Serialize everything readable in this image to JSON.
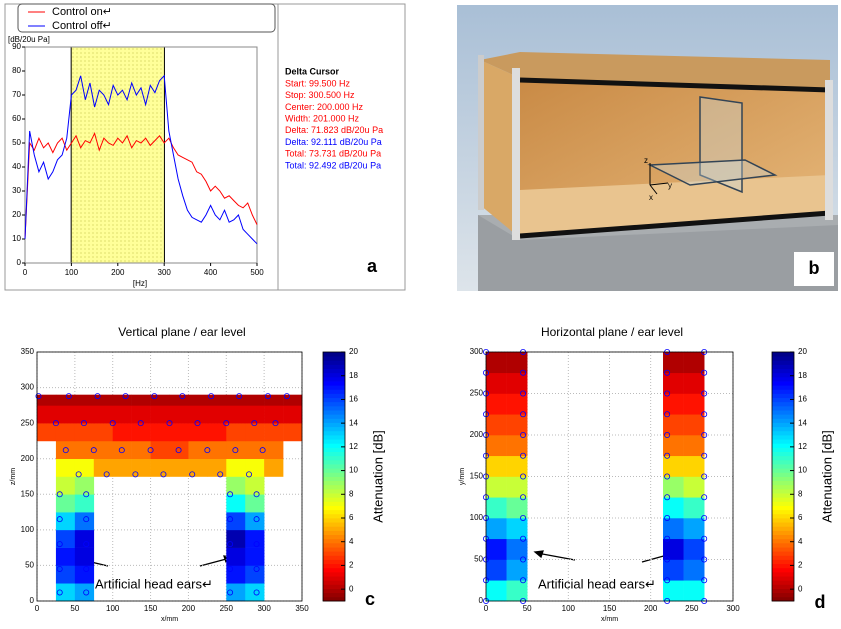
{
  "chart_data": [
    {
      "type": "line",
      "panel_label": "a",
      "ylabel": "[dB/20u Pa]",
      "xlabel": "[Hz]",
      "x": [
        0,
        10,
        20,
        30,
        40,
        50,
        60,
        70,
        80,
        90,
        100,
        110,
        120,
        130,
        140,
        150,
        160,
        170,
        180,
        190,
        200,
        210,
        220,
        230,
        240,
        250,
        260,
        270,
        280,
        290,
        300,
        310,
        320,
        330,
        340,
        350,
        360,
        370,
        380,
        390,
        400,
        410,
        420,
        430,
        440,
        450,
        460,
        470,
        480,
        490,
        500
      ],
      "series": [
        {
          "name": "Control on↵",
          "color": "#ff0000",
          "values": [
            10,
            50,
            47,
            52,
            48,
            50,
            46,
            50,
            52,
            47,
            50,
            53,
            48,
            51,
            50,
            54,
            47,
            52,
            50,
            49,
            52,
            50,
            53,
            48,
            51,
            50,
            52,
            49,
            51,
            53,
            50,
            52,
            48,
            45,
            44,
            43,
            42,
            38,
            37,
            34,
            30,
            32,
            30,
            27,
            28,
            26,
            24,
            23,
            25,
            20,
            16
          ]
        },
        {
          "name": "Control off↵",
          "color": "#0000ff",
          "values": [
            10,
            55,
            45,
            38,
            42,
            35,
            38,
            43,
            45,
            52,
            70,
            72,
            78,
            68,
            75,
            65,
            72,
            70,
            66,
            74,
            70,
            72,
            68,
            75,
            70,
            73,
            66,
            74,
            71,
            76,
            78,
            55,
            45,
            35,
            28,
            22,
            19,
            18,
            17,
            20,
            24,
            20,
            18,
            22,
            17,
            18,
            20,
            14,
            12,
            10,
            8
          ]
        }
      ],
      "xlim": [
        0,
        500
      ],
      "ylim": [
        0,
        90
      ],
      "xticks": [
        0,
        100,
        200,
        300,
        400,
        500
      ],
      "yticks": [
        0,
        10,
        20,
        30,
        40,
        50,
        60,
        70,
        80,
        90
      ],
      "shade": [
        99.5,
        300.5
      ],
      "shade_color": "#ffff99",
      "cursor_box": {
        "title": "Delta Cursor",
        "lines": [
          {
            "text": "Start: 99.500 Hz",
            "color": "#ff0000"
          },
          {
            "text": "Stop: 300.500 Hz",
            "color": "#ff0000"
          },
          {
            "text": "Center: 200.000 Hz",
            "color": "#ff0000"
          },
          {
            "text": "Width: 201.000 Hz",
            "color": "#ff0000"
          },
          {
            "text": "Delta: 71.823 dB/20u Pa",
            "color": "#ff0000"
          },
          {
            "text": "Delta: 92.111 dB/20u Pa",
            "color": "#0000ff"
          },
          {
            "text": "Total: 73.731 dB/20u Pa",
            "color": "#ff0000"
          },
          {
            "text": "Total: 92.492 dB/20u Pa",
            "color": "#0000ff"
          }
        ]
      }
    },
    {
      "type": "heatmap",
      "title": "Vertical plane / ear level",
      "panel_label": "c",
      "xlabel": "x/mm",
      "ylabel": "z/mm",
      "xlim": [
        0,
        350
      ],
      "ylim": [
        0,
        350
      ],
      "xticks": [
        0,
        50,
        100,
        150,
        200,
        250,
        300,
        350
      ],
      "yticks": [
        0,
        50,
        100,
        150,
        200,
        250,
        300,
        350
      ],
      "grid": true,
      "x_edges": [
        0,
        25,
        50,
        75,
        100,
        125,
        150,
        175,
        200,
        225,
        250,
        275,
        300,
        325,
        350
      ],
      "y_edges": [
        0,
        25,
        50,
        75,
        100,
        125,
        150,
        175,
        200,
        225,
        250,
        275,
        290
      ],
      "values": [
        [
          null,
          13,
          14,
          null,
          null,
          null,
          null,
          null,
          null,
          null,
          14,
          13,
          null,
          null
        ],
        [
          null,
          16,
          17,
          null,
          null,
          null,
          null,
          null,
          null,
          null,
          17,
          16,
          null,
          null
        ],
        [
          null,
          17,
          18,
          null,
          null,
          null,
          null,
          null,
          null,
          null,
          18,
          17,
          null,
          null
        ],
        [
          null,
          16,
          18,
          null,
          null,
          null,
          null,
          null,
          null,
          null,
          19,
          17,
          null,
          null
        ],
        [
          null,
          13,
          15,
          null,
          null,
          null,
          null,
          null,
          null,
          null,
          16,
          14,
          null,
          null
        ],
        [
          null,
          10,
          11,
          null,
          null,
          null,
          null,
          null,
          null,
          null,
          12,
          10,
          null,
          null
        ],
        [
          null,
          8,
          9,
          null,
          null,
          null,
          null,
          null,
          null,
          null,
          9,
          8,
          null,
          null
        ],
        [
          null,
          7,
          7,
          5,
          5,
          5,
          5,
          5,
          5,
          5,
          7,
          7,
          5,
          null
        ],
        [
          null,
          4,
          4,
          4,
          4,
          4,
          3,
          3,
          4,
          4,
          4,
          4,
          4,
          null
        ],
        [
          3,
          3,
          3,
          3,
          2,
          2,
          2,
          2,
          2,
          2,
          3,
          3,
          3,
          3
        ],
        [
          1,
          1,
          1,
          1,
          1,
          1,
          1,
          1,
          1,
          1,
          1,
          1,
          1,
          1
        ],
        [
          0,
          0,
          0,
          0,
          0,
          0,
          0,
          0,
          0,
          0,
          0,
          0,
          0,
          0
        ]
      ],
      "clim": [
        -1,
        20
      ],
      "colormap": "jet_r",
      "colorbar_label": "Attenuation [dB]",
      "cticks": [
        0,
        2,
        4,
        6,
        8,
        10,
        12,
        14,
        16,
        18,
        20
      ],
      "points": {
        "x": [
          2,
          42,
          80,
          117,
          155,
          192,
          230,
          267,
          305,
          330,
          25,
          62,
          100,
          137,
          175,
          212,
          250,
          287,
          315,
          38,
          75,
          112,
          150,
          187,
          225,
          262,
          298,
          55,
          92,
          130,
          167,
          205,
          242,
          280,
          30,
          65,
          255,
          290,
          30,
          65,
          255,
          290,
          30,
          65,
          255,
          290,
          30,
          65,
          255,
          290,
          30,
          65,
          255,
          290
        ],
        "y": [
          288,
          288,
          288,
          288,
          288,
          288,
          288,
          288,
          288,
          288,
          250,
          250,
          250,
          250,
          250,
          250,
          250,
          250,
          250,
          212,
          212,
          212,
          212,
          212,
          212,
          212,
          212,
          178,
          178,
          178,
          178,
          178,
          178,
          178,
          150,
          150,
          150,
          150,
          115,
          115,
          115,
          115,
          80,
          80,
          80,
          80,
          45,
          45,
          45,
          45,
          12,
          12,
          12,
          12
        ]
      },
      "point_color": "#0000ff",
      "annotation": "Artificial head ears↵"
    },
    {
      "type": "heatmap",
      "title": "Horizontal plane / ear level",
      "panel_label": "d",
      "xlabel": "x/mm",
      "ylabel": "y/mm",
      "xlim": [
        0,
        300
      ],
      "ylim": [
        0,
        300
      ],
      "xticks": [
        0,
        50,
        100,
        150,
        200,
        250,
        300
      ],
      "yticks": [
        0,
        50,
        100,
        150,
        200,
        250,
        300
      ],
      "grid": true,
      "x_edges": [
        0,
        25,
        50,
        215,
        240,
        265
      ],
      "y_edges": [
        0,
        25,
        50,
        75,
        100,
        125,
        150,
        175,
        200,
        225,
        250,
        275,
        300
      ],
      "values": [
        [
          12,
          11,
          null,
          12,
          12
        ],
        [
          16,
          14,
          null,
          16,
          15
        ],
        [
          17,
          15,
          null,
          18,
          16
        ],
        [
          14,
          13,
          null,
          15,
          14
        ],
        [
          11,
          10,
          null,
          12,
          11
        ],
        [
          8,
          8,
          null,
          9,
          8
        ],
        [
          6,
          6,
          null,
          6,
          6
        ],
        [
          4,
          4,
          null,
          4,
          4
        ],
        [
          3,
          3,
          null,
          3,
          3
        ],
        [
          2,
          2,
          null,
          2,
          2
        ],
        [
          1,
          1,
          null,
          1,
          1
        ],
        [
          0,
          0,
          null,
          0,
          0
        ]
      ],
      "clim": [
        -1,
        20
      ],
      "colormap": "jet_r",
      "colorbar_label": "Attenuation [dB]",
      "cticks": [
        0,
        2,
        4,
        6,
        8,
        10,
        12,
        14,
        16,
        18,
        20
      ],
      "points": {
        "x": [
          0,
          45,
          220,
          265,
          0,
          45,
          220,
          265,
          0,
          45,
          220,
          265,
          0,
          45,
          220,
          265,
          0,
          45,
          220,
          265,
          0,
          45,
          220,
          265,
          0,
          45,
          220,
          265,
          0,
          45,
          220,
          265,
          0,
          45,
          220,
          265,
          0,
          45,
          220,
          265,
          0,
          45,
          220,
          265,
          0,
          45,
          220,
          265,
          0,
          45,
          220,
          265
        ],
        "y": [
          0,
          0,
          0,
          0,
          25,
          25,
          25,
          25,
          50,
          50,
          50,
          50,
          75,
          75,
          75,
          75,
          100,
          100,
          100,
          100,
          125,
          125,
          125,
          125,
          150,
          150,
          150,
          150,
          175,
          175,
          175,
          175,
          200,
          200,
          200,
          200,
          225,
          225,
          225,
          225,
          250,
          250,
          250,
          250,
          275,
          275,
          275,
          275,
          300,
          300,
          300,
          300
        ]
      },
      "point_color": "#0000ff",
      "annotation": "Artificial head ears↵"
    }
  ],
  "photo": {
    "axis_labels": [
      "z",
      "y",
      "x"
    ],
    "panel_label": "b"
  }
}
